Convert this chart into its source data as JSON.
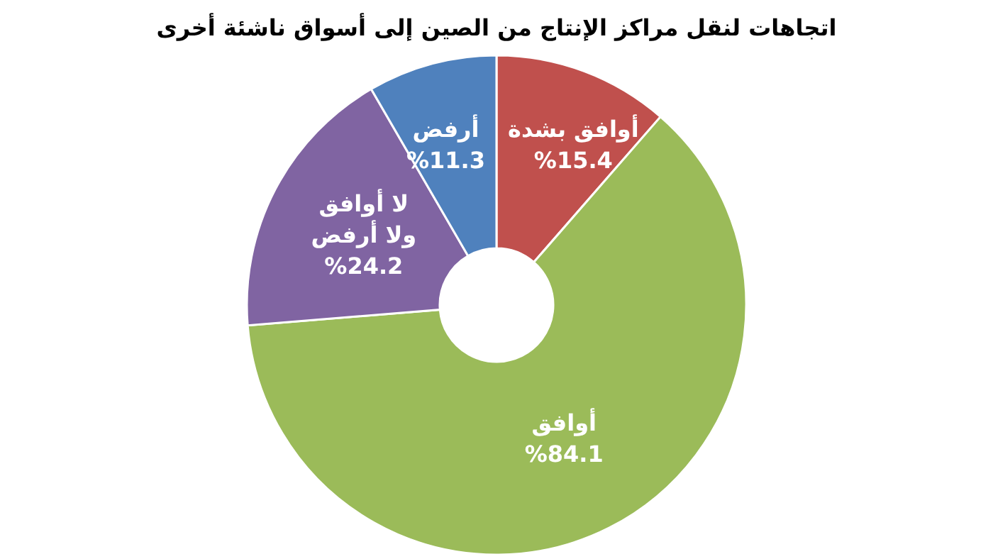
{
  "chart_data": {
    "type": "donut",
    "title": "اتجاهات لنقل مراكز الإنتاج من الصين إلى أسواق ناشئة أخرى",
    "categories": [
      "أوافق بشدة",
      "أوافق",
      "لا أوافق ولا أرفض",
      "أرفض"
    ],
    "values": [
      15.4,
      84.1,
      24.2,
      11.3
    ],
    "value_labels": [
      "%15.4",
      "%84.1",
      "%24.2",
      "%11.3"
    ],
    "colors": [
      "#c0504d",
      "#9bbb59",
      "#8064a2",
      "#4f81bd"
    ]
  }
}
